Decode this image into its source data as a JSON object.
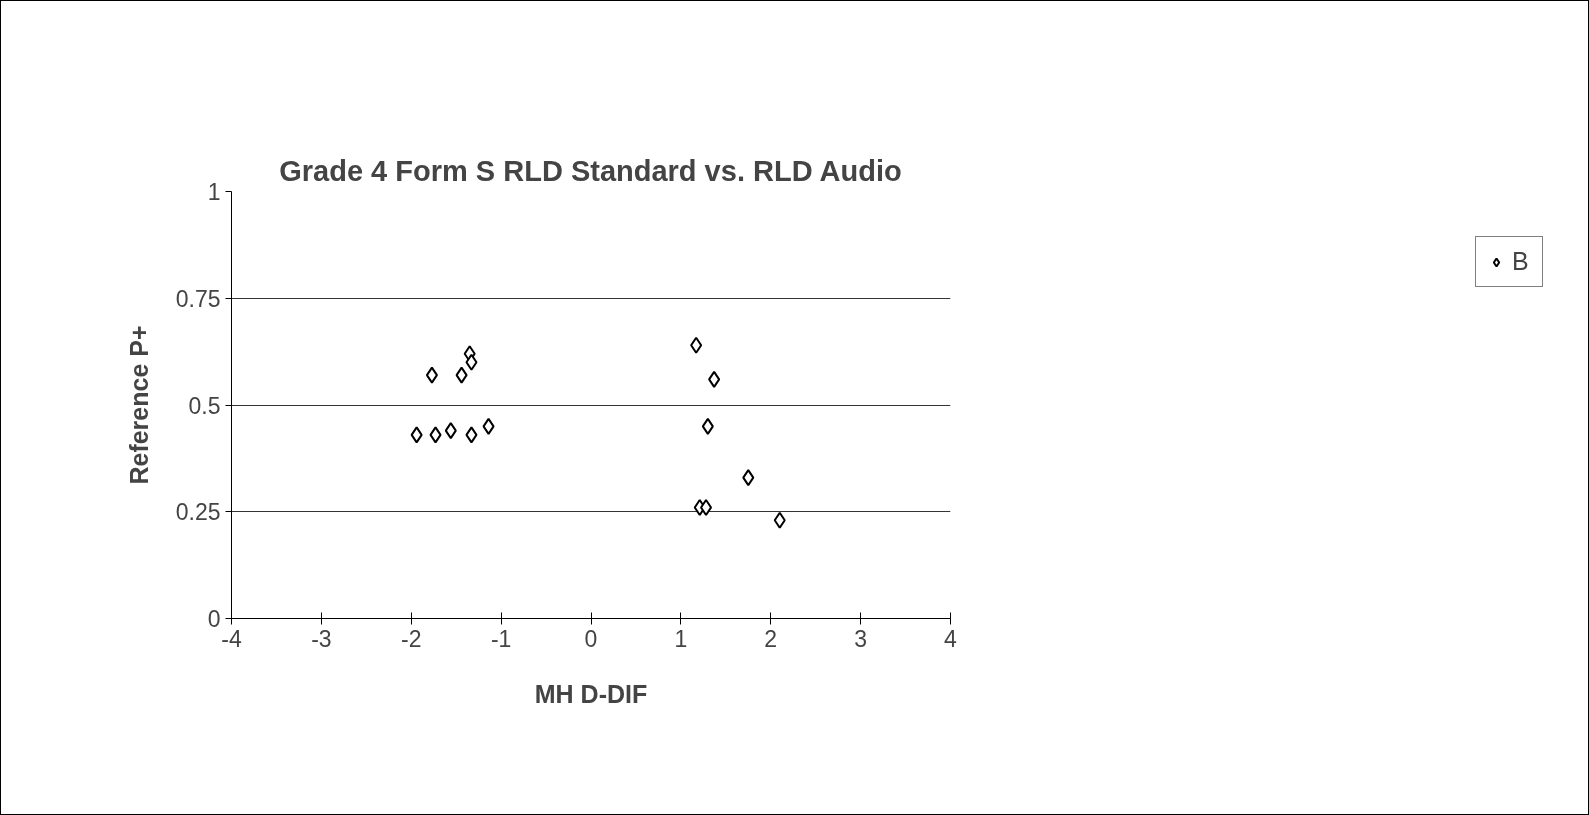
{
  "chart_data": {
    "type": "scatter",
    "title": "Grade 4 Form S RLD Standard vs. RLD Audio",
    "xlabel": "MH D-DIF",
    "ylabel": "Reference P+",
    "series": [
      {
        "name": "B",
        "color": "#000000",
        "x": [
          -1.94,
          -1.77,
          -1.73,
          -1.56,
          -1.44,
          -1.35,
          -1.33,
          -1.33,
          -1.14,
          1.17,
          1.37,
          1.3,
          1.21,
          1.28,
          1.75,
          2.1
        ],
        "values": [
          0.43,
          0.57,
          0.43,
          0.44,
          0.57,
          0.62,
          0.6,
          0.43,
          0.45,
          0.64,
          0.56,
          0.45,
          0.26,
          0.26,
          0.33,
          0.23
        ]
      }
    ],
    "xlim": [
      -4,
      4
    ],
    "xticks": [
      -4,
      -3,
      -2,
      -1,
      0,
      1,
      2,
      3,
      4
    ],
    "ylim": [
      0,
      1
    ],
    "yticks": [
      0,
      0.25,
      0.5,
      0.75,
      1
    ],
    "grid": "y",
    "legend": "right",
    "marker": "diamond"
  }
}
